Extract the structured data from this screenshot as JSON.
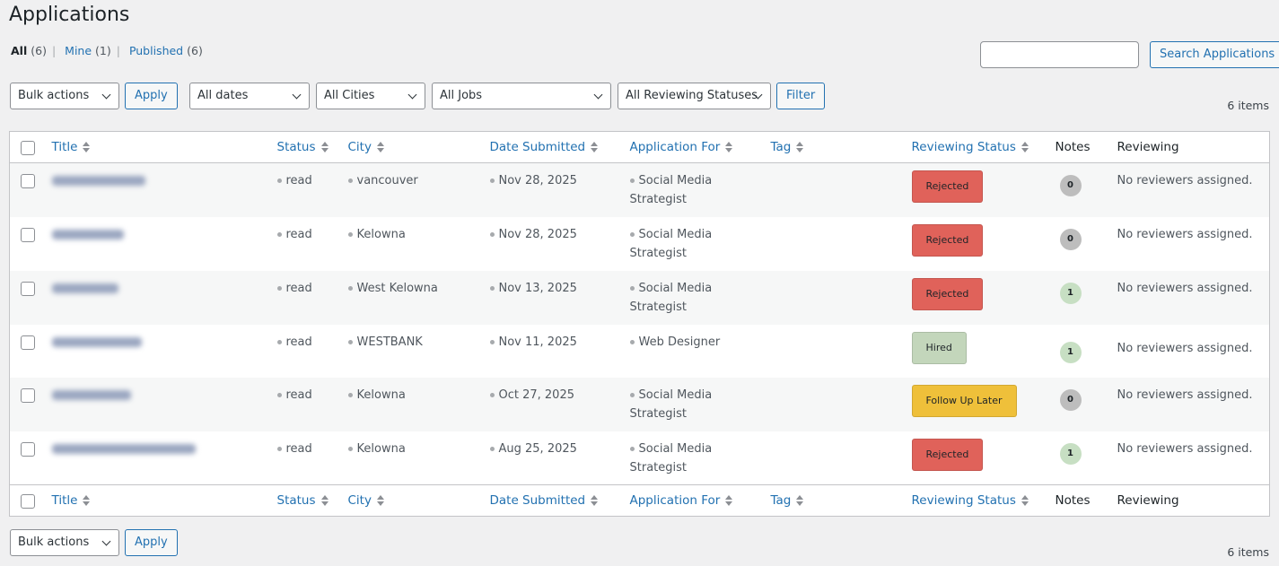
{
  "header": {
    "title": "Applications"
  },
  "views": [
    {
      "label": "All",
      "count": "(6)"
    },
    {
      "label": "Mine",
      "count": "(1)"
    },
    {
      "label": "Published",
      "count": "(6)"
    }
  ],
  "search": {
    "button": "Search Applications"
  },
  "filters": {
    "bulk": "Bulk actions",
    "apply": "Apply",
    "dates": "All dates",
    "cities": "All Cities",
    "jobs": "All Jobs",
    "statuses": "All Reviewing Statuses",
    "filter": "Filter"
  },
  "items_count": "6 items",
  "table": {
    "columns": [
      {
        "label": "Title",
        "sortable": true
      },
      {
        "label": "Status",
        "sortable": true
      },
      {
        "label": "City",
        "sortable": true
      },
      {
        "label": "Date Submitted",
        "sortable": true
      },
      {
        "label": "Application For",
        "sortable": true
      },
      {
        "label": "Tag",
        "sortable": true
      },
      {
        "label": "Reviewing Status",
        "sortable": true
      },
      {
        "label": "Notes",
        "sortable": false
      },
      {
        "label": "Reviewing",
        "sortable": false
      }
    ],
    "rows": [
      {
        "status": "read",
        "city": "vancouver",
        "date": "Nov 28, 2025",
        "application_for": "Social Media Strategist",
        "review": {
          "label": "Rejected",
          "color": "#e0625a"
        },
        "notes": {
          "value": 0,
          "color": "#bdbdbd"
        },
        "reviewing": "No reviewers assigned."
      },
      {
        "status": "read",
        "city": "Kelowna",
        "date": "Nov 28, 2025",
        "application_for": "Social Media Strategist",
        "review": {
          "label": "Rejected",
          "color": "#e0625a"
        },
        "notes": {
          "value": 0,
          "color": "#bdbdbd"
        },
        "reviewing": "No reviewers assigned."
      },
      {
        "status": "read",
        "city": "West Kelowna",
        "date": "Nov 13, 2025",
        "application_for": "Social Media Strategist",
        "review": {
          "label": "Rejected",
          "color": "#e0625a"
        },
        "notes": {
          "value": 1,
          "color": "#c7dfc3"
        },
        "reviewing": "No reviewers assigned."
      },
      {
        "status": "read",
        "city": "WESTBANK",
        "date": "Nov 11, 2025",
        "application_for": "Web Designer",
        "review": {
          "label": "Hired",
          "color": "#c3d6bb"
        },
        "notes": {
          "value": 1,
          "color": "#c7dfc3"
        },
        "reviewing": "No reviewers assigned."
      },
      {
        "status": "read",
        "city": "Kelowna",
        "date": "Oct 27, 2025",
        "application_for": "Social Media Strategist",
        "review": {
          "label": "Follow Up Later",
          "color": "#efc03a"
        },
        "notes": {
          "value": 0,
          "color": "#bdbdbd"
        },
        "reviewing": "No reviewers assigned."
      },
      {
        "status": "read",
        "city": "Kelowna",
        "date": "Aug 25, 2025",
        "application_for": "Social Media Strategist",
        "review": {
          "label": "Rejected",
          "color": "#e0625a"
        },
        "notes": {
          "value": 1,
          "color": "#c7dfc3"
        },
        "reviewing": "No reviewers assigned."
      }
    ]
  }
}
